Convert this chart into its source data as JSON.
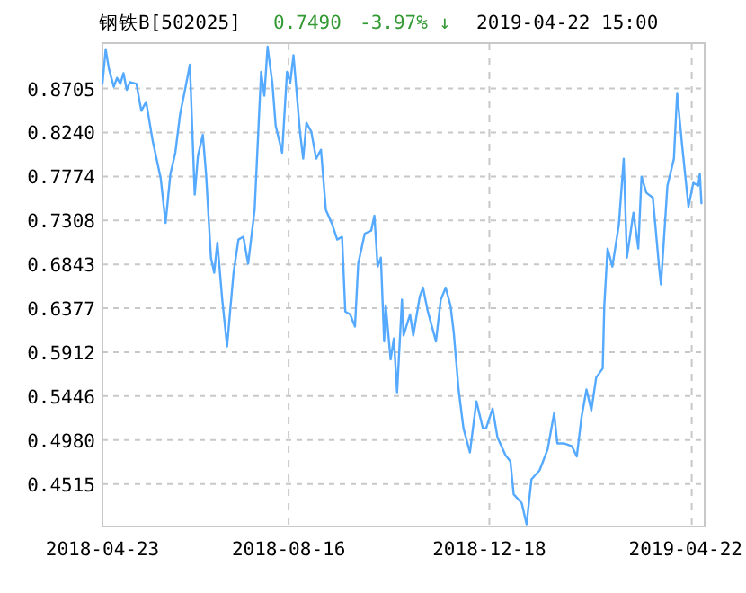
{
  "chart_data": {
    "type": "line",
    "title": "钢铁B[502025]",
    "annotations": [
      "0.7490",
      "-3.97% ↓",
      "2019-04-22 15:00"
    ],
    "x": [
      "2018-04-23",
      "2018-04-25",
      "2018-04-27",
      "2018-04-30",
      "2018-05-02",
      "2018-05-04",
      "2018-05-06",
      "2018-05-08",
      "2018-05-10",
      "2018-05-14",
      "2018-05-17",
      "2018-05-20",
      "2018-05-24",
      "2018-05-29",
      "2018-06-01",
      "2018-06-04",
      "2018-06-07",
      "2018-06-10",
      "2018-06-13",
      "2018-06-16",
      "2018-06-19",
      "2018-06-21",
      "2018-06-24",
      "2018-06-26",
      "2018-06-29",
      "2018-07-01",
      "2018-07-03",
      "2018-07-06",
      "2018-07-09",
      "2018-07-11",
      "2018-07-13",
      "2018-07-16",
      "2018-07-19",
      "2018-07-22",
      "2018-07-26",
      "2018-07-30",
      "2018-08-01",
      "2018-08-03",
      "2018-08-06",
      "2018-08-08",
      "2018-08-12",
      "2018-08-15",
      "2018-08-17",
      "2018-08-19",
      "2018-08-23",
      "2018-08-25",
      "2018-08-27",
      "2018-08-30",
      "2018-09-02",
      "2018-09-05",
      "2018-09-08",
      "2018-09-12",
      "2018-09-15",
      "2018-09-18",
      "2018-09-20",
      "2018-09-23",
      "2018-09-26",
      "2018-09-28",
      "2018-10-02",
      "2018-10-06",
      "2018-10-08",
      "2018-10-10",
      "2018-10-12",
      "2018-10-14",
      "2018-10-15",
      "2018-10-18",
      "2018-10-20",
      "2018-10-22",
      "2018-10-25",
      "2018-10-26",
      "2018-10-30",
      "2018-11-01",
      "2018-11-05",
      "2018-11-07",
      "2018-11-10",
      "2018-11-15",
      "2018-11-18",
      "2018-11-21",
      "2018-11-24",
      "2018-11-26",
      "2018-11-29",
      "2018-12-02",
      "2018-12-06",
      "2018-12-10",
      "2018-12-14",
      "2018-12-16",
      "2018-12-20",
      "2018-12-23",
      "2018-12-28",
      "2018-12-31",
      "2019-01-02",
      "2019-01-07",
      "2019-01-10",
      "2019-01-13",
      "2019-01-18",
      "2019-01-23",
      "2019-01-27",
      "2019-01-29",
      "2019-02-02",
      "2019-02-07",
      "2019-02-10",
      "2019-02-13",
      "2019-02-16",
      "2019-02-19",
      "2019-02-22",
      "2019-02-26",
      "2019-02-27",
      "2019-03-01",
      "2019-03-04",
      "2019-03-08",
      "2019-03-11",
      "2019-03-13",
      "2019-03-17",
      "2019-03-20",
      "2019-03-22",
      "2019-03-25",
      "2019-03-29",
      "2019-04-02",
      "2019-04-03",
      "2019-04-07",
      "2019-04-11",
      "2019-04-13",
      "2019-04-16",
      "2019-04-20",
      "2019-04-23",
      "2019-04-26",
      "2019-04-27",
      "2019-04-28"
    ],
    "series": [
      {
        "color": "#55aaff",
        "values": [
          0.8755,
          0.9124,
          0.8914,
          0.8724,
          0.8819,
          0.8755,
          0.8869,
          0.8692,
          0.8774,
          0.8755,
          0.8469,
          0.8564,
          0.8153,
          0.7753,
          0.7282,
          0.7802,
          0.8025,
          0.8438,
          0.8692,
          0.8958,
          0.7581,
          0.7993,
          0.8215,
          0.7802,
          0.6914,
          0.6754,
          0.7073,
          0.6469,
          0.5973,
          0.6373,
          0.6754,
          0.7105,
          0.7135,
          0.685,
          0.7421,
          0.8882,
          0.8629,
          0.9149,
          0.8755,
          0.8311,
          0.8025,
          0.8882,
          0.8768,
          0.9059,
          0.8248,
          0.7962,
          0.8343,
          0.8248,
          0.7962,
          0.8057,
          0.7421,
          0.7263,
          0.7105,
          0.7135,
          0.6343,
          0.6311,
          0.6183,
          0.685,
          0.7168,
          0.72,
          0.7358,
          0.6819,
          0.6914,
          0.6025,
          0.6406,
          0.5834,
          0.6057,
          0.5486,
          0.6469,
          0.6088,
          0.6311,
          0.6088,
          0.6501,
          0.6596,
          0.6343,
          0.6025,
          0.6469,
          0.6596,
          0.6406,
          0.612,
          0.5516,
          0.5105,
          0.485,
          0.5391,
          0.5105,
          0.5105,
          0.5314,
          0.501,
          0.4819,
          0.4754,
          0.4406,
          0.4311,
          0.4088,
          0.4564,
          0.4659,
          0.4882,
          0.5263,
          0.4945,
          0.4945,
          0.4914,
          0.4806,
          0.5231,
          0.5516,
          0.5295,
          0.5644,
          0.5739,
          0.6406,
          0.701,
          0.6819,
          0.7263,
          0.7962,
          0.6914,
          0.7391,
          0.701,
          0.7772,
          0.76,
          0.7549,
          0.6787,
          0.6629,
          0.7676,
          0.7962,
          0.8659,
          0.812,
          0.7453,
          0.7707,
          0.7676,
          0.7802,
          0.749
        ]
      }
    ],
    "xlim": [
      "2018-04-23",
      "2019-04-30"
    ],
    "xticks": [
      {
        "value": "2018-04-23",
        "label": "2018-04-23"
      },
      {
        "value": "2018-08-16",
        "label": "2018-08-16"
      },
      {
        "value": "2018-12-18",
        "label": "2018-12-18"
      },
      {
        "value": "2019-04-22",
        "label": "2019-04-22"
      }
    ],
    "ylim": [
      0.4064,
      0.9187
    ],
    "yticks": [
      {
        "value": 0.4515,
        "label": "0.4515"
      },
      {
        "value": 0.498,
        "label": "0.4980"
      },
      {
        "value": 0.5446,
        "label": "0.5446"
      },
      {
        "value": 0.5912,
        "label": "0.5912"
      },
      {
        "value": 0.6377,
        "label": "0.6377"
      },
      {
        "value": 0.6843,
        "label": "0.6843"
      },
      {
        "value": 0.7308,
        "label": "0.7308"
      },
      {
        "value": 0.7774,
        "label": "0.7774"
      },
      {
        "value": 0.824,
        "label": "0.8240"
      },
      {
        "value": 0.8705,
        "label": "0.8705"
      }
    ],
    "grid": true,
    "line_style": "solid",
    "marker": "none"
  }
}
